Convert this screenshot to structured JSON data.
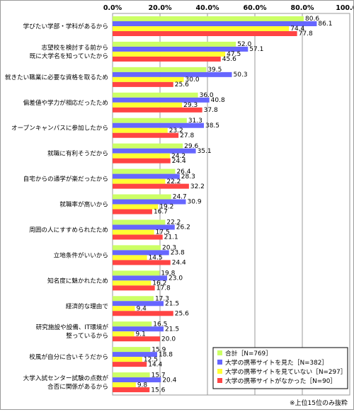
{
  "chart_data": {
    "type": "bar",
    "orientation": "horizontal",
    "xlim": [
      0,
      100
    ],
    "x_ticks": [
      "0.0%",
      "20.0%",
      "40.0%",
      "60.0%",
      "80.0%",
      "100.0%"
    ],
    "grid": true,
    "legend_position": "bottom-right",
    "categories": [
      [
        "学びたい学部・学科があるから"
      ],
      [
        "志望校を検討する前から",
        "既に大学名を知っていたから"
      ],
      [
        "就きたい職業に必要な資格を取るため"
      ],
      [
        "偏差値や学力が相応だったため"
      ],
      [
        "オープンキャンパスに参加したから"
      ],
      [
        "就職に有利そうだから"
      ],
      [
        "自宅からの通学が楽だったから"
      ],
      [
        "就職率が高いから"
      ],
      [
        "周囲の人にすすめられたため"
      ],
      [
        "立地条件がいいから"
      ],
      [
        "知名度に魅かれたため"
      ],
      [
        "経済的な理由で"
      ],
      [
        "研究施設や設備、IT環境が",
        "整っているから"
      ],
      [
        "校風が自分に合いそうだから"
      ],
      [
        "大学入試センター試験の点数が",
        "合否に関係があるから"
      ]
    ],
    "series": [
      {
        "name": "合計［N=769］",
        "color": "#ccff66",
        "values": [
          80.6,
          52.0,
          39.5,
          36.0,
          31.3,
          29.6,
          26.4,
          24.7,
          22.2,
          20.3,
          19.8,
          17.3,
          16.5,
          15.9,
          15.7
        ]
      },
      {
        "name": "大学の携帯サイトを見た［N=382］",
        "color": "#6666ff",
        "values": [
          86.1,
          57.1,
          50.3,
          40.8,
          38.5,
          35.1,
          28.3,
          30.9,
          26.2,
          23.8,
          23.0,
          21.5,
          21.5,
          18.8,
          20.4
        ]
      },
      {
        "name": "大学の携帯サイトを見ていない［N=297］",
        "color": "#ffff33",
        "values": [
          74.4,
          47.5,
          30.0,
          29.3,
          23.2,
          24.2,
          22.2,
          19.2,
          17.5,
          14.5,
          16.2,
          9.4,
          9.1,
          12.5,
          9.8
        ]
      },
      {
        "name": "大学の携帯サイトがなかった［N=90］",
        "color": "#ff4444",
        "values": [
          77.8,
          45.6,
          25.6,
          37.8,
          27.8,
          24.4,
          32.2,
          16.7,
          21.1,
          24.4,
          17.8,
          25.6,
          20.0,
          14.4,
          15.6
        ]
      }
    ],
    "footnote": "※上位15位のみ抜粋"
  }
}
